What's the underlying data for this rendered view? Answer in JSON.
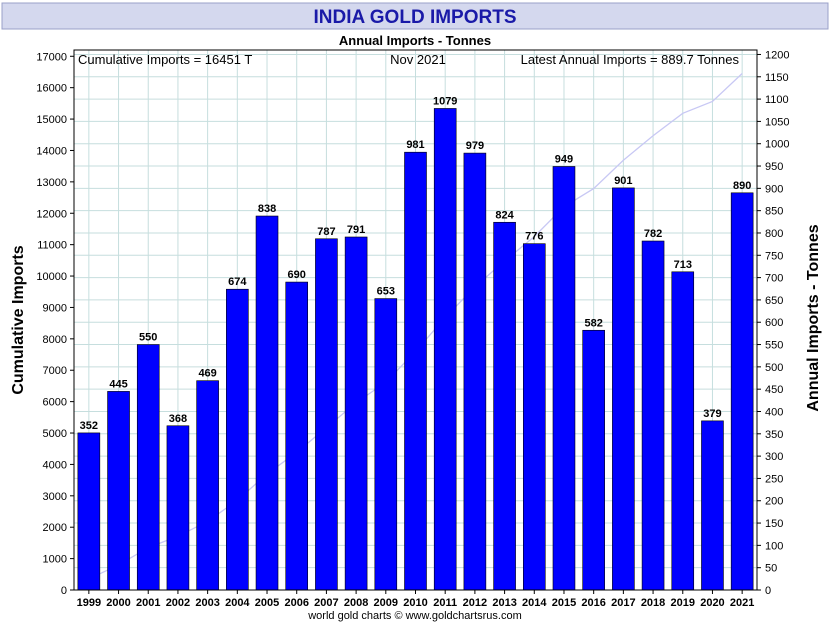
{
  "chart_data": {
    "type": "bar",
    "title": "INDIA GOLD IMPORTS",
    "subtitle": "Annual Imports - Tonnes",
    "annotations": {
      "left": "Cumulative Imports = 16451 T",
      "center": "Nov 2021",
      "right": "Latest Annual Imports = 889.7 Tonnes"
    },
    "footer": "world gold charts © www.goldchartsrus.com",
    "ylabel_left": "Cumulative Imports",
    "ylabel_right": "Annual Imports - Tonnes",
    "xlabel": "",
    "grid": true,
    "categories": [
      "1999",
      "2000",
      "2001",
      "2002",
      "2003",
      "2004",
      "2005",
      "2006",
      "2007",
      "2008",
      "2009",
      "2010",
      "2011",
      "2012",
      "2013",
      "2014",
      "2015",
      "2016",
      "2017",
      "2018",
      "2019",
      "2020",
      "2021"
    ],
    "series": [
      {
        "values": [
          352,
          445,
          550,
          368,
          469,
          674,
          838,
          690,
          787,
          791,
          653,
          981,
          1079,
          979,
          824,
          776,
          949,
          582,
          901,
          782,
          713,
          379,
          890
        ],
        "axis": "right"
      },
      {
        "values": [
          352,
          797,
          1347,
          1715,
          2184,
          2858,
          3696,
          4386,
          5173,
          5964,
          6617,
          7598,
          8677,
          9656,
          10480,
          11256,
          12205,
          12787,
          13688,
          14470,
          15183,
          15562,
          16451
        ],
        "axis": "left"
      }
    ],
    "ylim_left": [
      0,
      17200
    ],
    "yticks_left": [
      0,
      1000,
      2000,
      3000,
      4000,
      5000,
      6000,
      7000,
      8000,
      9000,
      10000,
      11000,
      12000,
      13000,
      14000,
      15000,
      16000,
      17000
    ],
    "ylim_right": [
      0,
      1210
    ],
    "yticks_right": [
      0,
      50,
      100,
      150,
      200,
      250,
      300,
      350,
      400,
      450,
      500,
      550,
      600,
      650,
      700,
      750,
      800,
      850,
      900,
      950,
      1000,
      1050,
      1100,
      1150,
      1200
    ],
    "colors": {
      "bar": "#0000ff",
      "cumulative_line": "#c8c8f4",
      "title_band": "#d4d8ee",
      "title_text": "#1a1aa8",
      "grid": "#c6dede"
    }
  }
}
